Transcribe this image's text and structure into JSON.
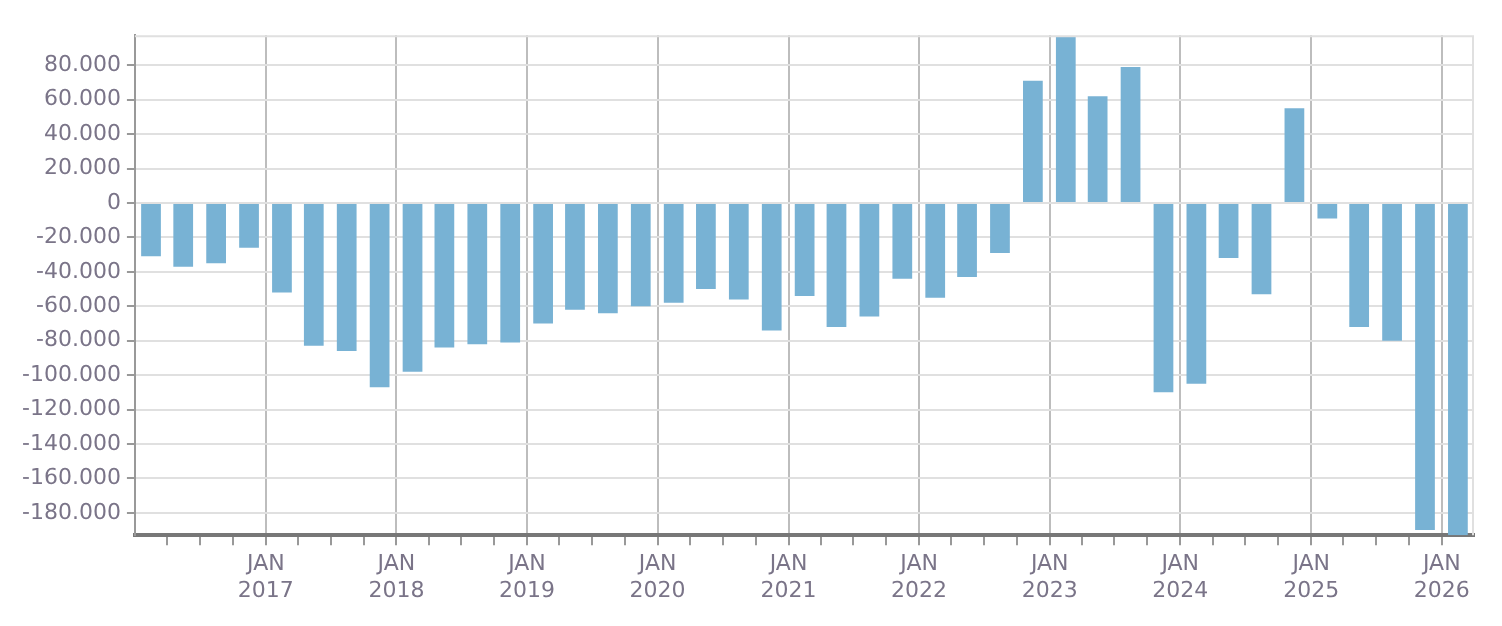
{
  "chart_data": {
    "type": "bar",
    "x": [
      "2016-02-15",
      "2016-05-15",
      "2016-08-15",
      "2016-11-15",
      "2017-02-15",
      "2017-05-15",
      "2017-08-15",
      "2017-11-15",
      "2018-02-15",
      "2018-05-15",
      "2018-08-15",
      "2018-11-15",
      "2019-02-15",
      "2019-05-15",
      "2019-08-15",
      "2019-11-15",
      "2020-02-15",
      "2020-05-15",
      "2020-08-15",
      "2020-11-15",
      "2021-02-15",
      "2021-05-15",
      "2021-08-15",
      "2021-11-15",
      "2022-02-15",
      "2022-05-15",
      "2022-08-15",
      "2022-11-15",
      "2023-02-15",
      "2023-05-15",
      "2023-08-15",
      "2023-11-15",
      "2024-02-15",
      "2024-05-15",
      "2024-08-15",
      "2024-11-15",
      "2025-02-15",
      "2025-05-15",
      "2025-08-15",
      "2025-11-15",
      "2026-02-15"
    ],
    "values": [
      -31000,
      -37000,
      -35000,
      -26000,
      -52000,
      -83000,
      -86000,
      -107000,
      -98000,
      -84000,
      -82000,
      -81000,
      -70000,
      -62000,
      -64000,
      -60000,
      -58000,
      -50000,
      -56000,
      -74000,
      -54000,
      -72000,
      -66000,
      -44000,
      -55000,
      -43000,
      -29000,
      71000,
      97000,
      62000,
      79000,
      -110000,
      -105000,
      -32000,
      -53000,
      55000,
      -9000,
      -72000,
      -80000,
      -190000,
      -193000
    ],
    "color": "#78b2d4",
    "xlim": [
      "2016-01-01",
      "2026-04-01"
    ],
    "xticks": [
      {
        "value": "2016-04-01",
        "label": null
      },
      {
        "value": "2016-07-01",
        "label": null
      },
      {
        "value": "2016-10-01",
        "label": null
      },
      {
        "value": "2017-01-01",
        "label": "JAN 2017"
      },
      {
        "value": "2017-04-01",
        "label": null
      },
      {
        "value": "2017-07-01",
        "label": null
      },
      {
        "value": "2017-10-01",
        "label": null
      },
      {
        "value": "2018-01-01",
        "label": "JAN 2018"
      },
      {
        "value": "2018-04-01",
        "label": null
      },
      {
        "value": "2018-07-01",
        "label": null
      },
      {
        "value": "2018-10-01",
        "label": null
      },
      {
        "value": "2019-01-01",
        "label": "JAN 2019"
      },
      {
        "value": "2019-04-01",
        "label": null
      },
      {
        "value": "2019-07-01",
        "label": null
      },
      {
        "value": "2019-10-01",
        "label": null
      },
      {
        "value": "2020-01-01",
        "label": "JAN 2020"
      },
      {
        "value": "2020-04-01",
        "label": null
      },
      {
        "value": "2020-07-01",
        "label": null
      },
      {
        "value": "2020-10-01",
        "label": null
      },
      {
        "value": "2021-01-01",
        "label": "JAN 2021"
      },
      {
        "value": "2021-04-01",
        "label": null
      },
      {
        "value": "2021-07-01",
        "label": null
      },
      {
        "value": "2021-10-01",
        "label": null
      },
      {
        "value": "2022-01-01",
        "label": "JAN 2022"
      },
      {
        "value": "2022-04-01",
        "label": null
      },
      {
        "value": "2022-07-01",
        "label": null
      },
      {
        "value": "2022-10-01",
        "label": null
      },
      {
        "value": "2023-01-01",
        "label": "JAN 2023"
      },
      {
        "value": "2023-04-01",
        "label": null
      },
      {
        "value": "2023-07-01",
        "label": null
      },
      {
        "value": "2023-10-01",
        "label": null
      },
      {
        "value": "2024-01-01",
        "label": "JAN 2024"
      },
      {
        "value": "2024-04-01",
        "label": null
      },
      {
        "value": "2024-07-01",
        "label": null
      },
      {
        "value": "2024-10-01",
        "label": null
      },
      {
        "value": "2025-01-01",
        "label": "JAN 2025"
      },
      {
        "value": "2025-04-01",
        "label": null
      },
      {
        "value": "2025-07-01",
        "label": null
      },
      {
        "value": "2025-10-01",
        "label": null
      },
      {
        "value": "2026-01-01",
        "label": "JAN 2026"
      }
    ],
    "ylim": [
      -193000,
      97500
    ],
    "yticks": [
      {
        "value": 80000,
        "label": "80.000"
      },
      {
        "value": 60000,
        "label": "60.000"
      },
      {
        "value": 40000,
        "label": "40.000"
      },
      {
        "value": 20000,
        "label": "20.000"
      },
      {
        "value": 0,
        "label": "0"
      },
      {
        "value": -20000,
        "label": "-20.000"
      },
      {
        "value": -40000,
        "label": "-40.000"
      },
      {
        "value": -60000,
        "label": "-60.000"
      },
      {
        "value": -80000,
        "label": "-80.000"
      },
      {
        "value": -100000,
        "label": "-100.000"
      },
      {
        "value": -120000,
        "label": "-120.000"
      },
      {
        "value": -140000,
        "label": "-140.000"
      },
      {
        "value": -160000,
        "label": "-160.000"
      },
      {
        "value": -180000,
        "label": "-180.000"
      }
    ],
    "grid": true,
    "legend": false
  }
}
